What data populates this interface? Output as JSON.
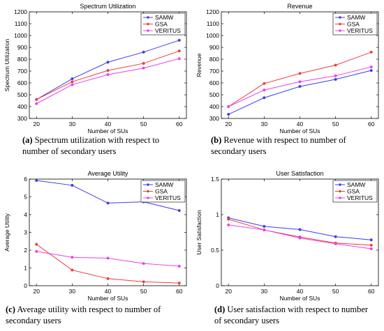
{
  "chart_data": [
    {
      "type": "line",
      "title": "Spectrum Utilization",
      "xlabel": "Number of SUs",
      "ylabel": "Spectrum Utilization",
      "x": [
        20,
        30,
        40,
        50,
        60
      ],
      "xlim": [
        18,
        62
      ],
      "ylim": [
        300,
        1200
      ],
      "yticks": [
        300,
        400,
        500,
        600,
        700,
        800,
        900,
        1000,
        1100,
        1200
      ],
      "yticklabels": [
        "300",
        "400",
        "500",
        "600",
        "700",
        "800",
        "900",
        "1000",
        "1100",
        "1200"
      ],
      "legend_position": "top-right",
      "series": [
        {
          "name": "SAMW",
          "color": "#3c3cf0",
          "values": [
            460,
            635,
            775,
            860,
            960
          ]
        },
        {
          "name": "GSA",
          "color": "#f03c3c",
          "values": [
            460,
            610,
            705,
            765,
            870
          ]
        },
        {
          "name": "VERITUS",
          "color": "#f03cf0",
          "values": [
            425,
            585,
            670,
            725,
            805
          ]
        }
      ],
      "caption_prefix": "(a)",
      "caption_text": "Spectrum utilization with respect to number of secondary users"
    },
    {
      "type": "line",
      "title": "Revenue",
      "xlabel": "Number of SUs",
      "ylabel": "Revenue",
      "x": [
        20,
        30,
        40,
        50,
        60
      ],
      "xlim": [
        18,
        62
      ],
      "ylim": [
        300,
        1200
      ],
      "yticks": [
        300,
        400,
        500,
        600,
        700,
        800,
        900,
        1000,
        1100,
        1200
      ],
      "yticklabels": [
        "300",
        "400",
        "500",
        "600",
        "700",
        "800",
        "900",
        "1000",
        "1100",
        "1200"
      ],
      "legend_position": "top-right",
      "series": [
        {
          "name": "SAMW",
          "color": "#3c3cf0",
          "values": [
            335,
            475,
            570,
            630,
            705
          ]
        },
        {
          "name": "GSA",
          "color": "#f03c3c",
          "values": [
            400,
            595,
            680,
            750,
            860
          ]
        },
        {
          "name": "VERITUS",
          "color": "#f03cf0",
          "values": [
            400,
            540,
            610,
            660,
            735
          ]
        }
      ],
      "caption_prefix": "(b)",
      "caption_text": "Revenue with respect to number of secondary users"
    },
    {
      "type": "line",
      "title": "Average Utility",
      "xlabel": "Number of SUs",
      "ylabel": "Average Utility",
      "x": [
        20,
        30,
        40,
        50,
        60
      ],
      "xlim": [
        18,
        62
      ],
      "ylim": [
        0,
        6
      ],
      "yticks": [
        0,
        1,
        2,
        3,
        4,
        5,
        6
      ],
      "yticklabels": [
        "0",
        "1",
        "2",
        "3",
        "4",
        "5",
        "6"
      ],
      "legend_position": "top-right",
      "series": [
        {
          "name": "SAMW",
          "color": "#3c3cf0",
          "values": [
            5.92,
            5.65,
            4.65,
            4.72,
            4.23
          ]
        },
        {
          "name": "GSA",
          "color": "#f03c3c",
          "values": [
            2.33,
            0.88,
            0.4,
            0.22,
            0.15
          ]
        },
        {
          "name": "VERITUS",
          "color": "#f03cf0",
          "values": [
            1.93,
            1.6,
            1.55,
            1.25,
            1.1
          ]
        }
      ],
      "caption_prefix": "(c)",
      "caption_text": "Average utility with respect to number of secondary users"
    },
    {
      "type": "line",
      "title": "User Satisfaction",
      "xlabel": "Number of SUs",
      "ylabel": "User Satisfaction",
      "x": [
        20,
        30,
        40,
        50,
        60
      ],
      "xlim": [
        18,
        62
      ],
      "ylim": [
        0,
        1.5
      ],
      "yticks": [
        0,
        0.5,
        1,
        1.5
      ],
      "yticklabels": [
        "0",
        "0.5",
        "1",
        "1.5"
      ],
      "legend_position": "top-right",
      "series": [
        {
          "name": "SAMW",
          "color": "#3c3cf0",
          "values": [
            0.955,
            0.835,
            0.79,
            0.69,
            0.645
          ]
        },
        {
          "name": "GSA",
          "color": "#f03c3c",
          "values": [
            0.935,
            0.785,
            0.685,
            0.6,
            0.57
          ]
        },
        {
          "name": "VERITUS",
          "color": "#f03cf0",
          "values": [
            0.855,
            0.785,
            0.67,
            0.59,
            0.52
          ]
        }
      ],
      "caption_prefix": "(d)",
      "caption_text": "User satisfaction with respect to number of secondary users"
    }
  ]
}
